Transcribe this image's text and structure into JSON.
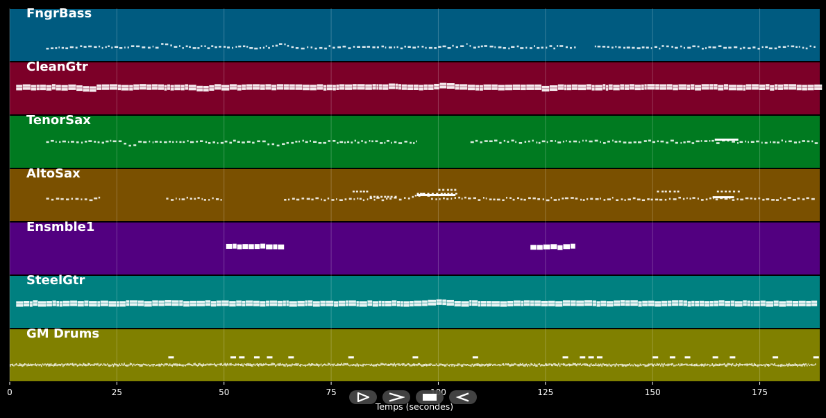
{
  "chart_data": {
    "type": "piano-roll",
    "xlabel": "Temps (secondes)",
    "xlim": [
      0,
      189
    ],
    "x_ticks": [
      0,
      25,
      50,
      75,
      100,
      125,
      150,
      175
    ],
    "grid": true,
    "tracks": [
      {
        "name": "FngrBass",
        "color": "#005b80",
        "style": "small",
        "base": 0.73,
        "segments": [
          [
            8.5,
            132.5
          ],
          [
            136.5,
            188
          ]
        ],
        "bumps": [
          [
            36.5,
            0.08
          ],
          [
            63.5,
            0.08
          ],
          [
            106,
            0.06
          ]
        ]
      },
      {
        "name": "CleanGtr",
        "color": "#7c0028",
        "style": "thick",
        "base": 0.48,
        "segments": [
          [
            1.5,
            188
          ]
        ],
        "bumps": [
          [
            18,
            -0.03
          ],
          [
            45,
            -0.03
          ],
          [
            90,
            0.02
          ],
          [
            101,
            0.04
          ],
          [
            125,
            -0.03
          ]
        ]
      },
      {
        "name": "TenorSax",
        "color": "#007a20",
        "style": "small",
        "base": 0.5,
        "segments": [
          [
            8.5,
            95
          ],
          [
            107.5,
            188
          ]
        ],
        "bumps": [
          [
            28,
            -0.06
          ],
          [
            62,
            -0.06
          ]
        ],
        "sustains": [
          [
            164.5,
            170,
            0.46
          ]
        ]
      },
      {
        "name": "AltoSax",
        "color": "#7a5000",
        "style": "small",
        "base": 0.57,
        "segments": [
          [
            8.5,
            21.5
          ],
          [
            36.5,
            49.5
          ],
          [
            64,
            188
          ]
        ],
        "bumps": [
          [
            96,
            0.1
          ]
        ],
        "extras": [
          [
            80,
            84,
            0.43
          ],
          [
            84,
            90,
            0.53
          ],
          [
            95,
            104,
            0.47
          ],
          [
            100,
            104,
            0.4
          ],
          [
            151,
            156,
            0.43
          ],
          [
            165,
            170,
            0.43
          ]
        ],
        "sustains": [
          [
            95,
            104,
            0.5
          ],
          [
            164,
            169,
            0.54
          ]
        ]
      },
      {
        "name": "Ensmble1",
        "color": "#520080",
        "style": "chord",
        "base": 0.47,
        "segments": [
          [
            50.5,
            64
          ],
          [
            121.5,
            132
          ]
        ],
        "bumps": []
      },
      {
        "name": "SteelGtr",
        "color": "#008080",
        "style": "thick",
        "base": 0.53,
        "segments": [
          [
            1.5,
            188
          ]
        ],
        "bumps": [
          [
            100,
            0.04
          ]
        ]
      },
      {
        "name": "GM Drums",
        "color": "#808000",
        "style": "drums",
        "base": 0.68,
        "segments": [
          [
            0,
            188
          ]
        ],
        "bumps": [],
        "accents": [
          37,
          51.5,
          53.5,
          57,
          60,
          65,
          79,
          94,
          108,
          129,
          133,
          135,
          137,
          150,
          154,
          157.5,
          164,
          168,
          178,
          187.5
        ]
      }
    ]
  },
  "transport": {
    "play": {
      "label": "play",
      "icon": "play-outline-icon"
    },
    "fast_forward": {
      "label": "fast forward",
      "icon": "chevron-right-icon"
    },
    "stop": {
      "label": "stop",
      "icon": "stop-icon"
    },
    "rewind": {
      "label": "rewind",
      "icon": "rewind-icon"
    }
  }
}
